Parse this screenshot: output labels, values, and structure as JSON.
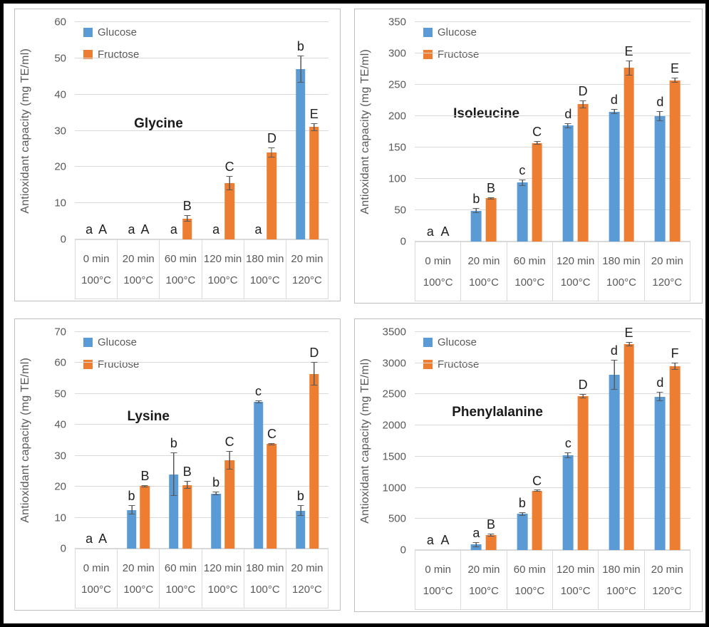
{
  "figure": {
    "background": "#ffffff",
    "border_color": "#000000"
  },
  "palette": {
    "glucose": "#5B9BD5",
    "fructose": "#ED7D31",
    "gridline": "#D9D9D9",
    "axis_text": "#595959",
    "letter_text": "#1f1f1f",
    "error_bar": "#595959",
    "panel_border": "#BFBFBF"
  },
  "legend": {
    "position": "top-left",
    "items": [
      {
        "label": "Glucose",
        "color": "#5B9BD5"
      },
      {
        "label": "Fructose",
        "color": "#ED7D31"
      }
    ]
  },
  "chart_data": [
    {
      "type": "bar",
      "title": "Glycine",
      "ylabel": "Antioxidant capacity (mg TE/ml)",
      "ylim": [
        0,
        60
      ],
      "yticks": [
        0,
        10,
        20,
        30,
        40,
        50,
        60
      ],
      "grid": true,
      "categories_line1": [
        "0 min",
        "20 min",
        "60 min",
        "120 min",
        "180 min",
        "20 min"
      ],
      "categories_line2": [
        "100°C",
        "100°C",
        "100°C",
        "100°C",
        "100°C",
        "120°C"
      ],
      "series": [
        {
          "name": "Glucose",
          "color": "#5B9BD5",
          "values": [
            0,
            0,
            0,
            0,
            0,
            47
          ],
          "errors": [
            0,
            0,
            0,
            0,
            0,
            3.7
          ],
          "letters": [
            "a",
            "a",
            "a",
            "a",
            "a",
            "b"
          ]
        },
        {
          "name": "Fructose",
          "color": "#ED7D31",
          "values": [
            0,
            0,
            5.8,
            15.5,
            24,
            31
          ],
          "errors": [
            0,
            0,
            0.8,
            2,
            1.3,
            1
          ],
          "letters": [
            "A",
            "A",
            "B",
            "C",
            "D",
            "E"
          ]
        }
      ],
      "title_pos": {
        "x": 33,
        "y": 47
      }
    },
    {
      "type": "bar",
      "title": "Isoleucine",
      "ylabel": "Antioxidant capacity (mg TE/ml)",
      "ylim": [
        0,
        350
      ],
      "yticks": [
        0,
        50,
        100,
        150,
        200,
        250,
        300,
        350
      ],
      "grid": true,
      "categories_line1": [
        "0 min",
        "20 min",
        "60 min",
        "120 min",
        "180 min",
        "20 min"
      ],
      "categories_line2": [
        "100°C",
        "100°C",
        "100°C",
        "100°C",
        "100°C",
        "120°C"
      ],
      "series": [
        {
          "name": "Glucose",
          "color": "#5B9BD5",
          "values": [
            0,
            49,
            94,
            185,
            207,
            200
          ],
          "errors": [
            0,
            4,
            5,
            4,
            4,
            8
          ],
          "letters": [
            "a",
            "b",
            "c",
            "d",
            "d",
            "d"
          ]
        },
        {
          "name": "Fructose",
          "color": "#ED7D31",
          "values": [
            0,
            69,
            157,
            219,
            277,
            257
          ],
          "errors": [
            0,
            1.5,
            3,
            6,
            12,
            4
          ],
          "letters": [
            "A",
            "B",
            "C",
            "D",
            "E",
            "E"
          ]
        }
      ],
      "title_pos": {
        "x": 26,
        "y": 42
      }
    },
    {
      "type": "bar",
      "title": "Lysine",
      "ylabel": "Antioxidant capacity (mg TE/ml)",
      "ylim": [
        0,
        70
      ],
      "yticks": [
        0,
        10,
        20,
        30,
        40,
        50,
        60,
        70
      ],
      "grid": true,
      "categories_line1": [
        "0 min",
        "20 min",
        "60 min",
        "120 min",
        "180 min",
        "20 min"
      ],
      "categories_line2": [
        "100°C",
        "100°C",
        "100°C",
        "100°C",
        "100°C",
        "120°C"
      ],
      "series": [
        {
          "name": "Glucose",
          "color": "#5B9BD5",
          "values": [
            0,
            12.5,
            24,
            17.8,
            47.5,
            12.3
          ],
          "errors": [
            0,
            1.5,
            7,
            0.6,
            0.5,
            1.8
          ],
          "letters": [
            "a",
            "b",
            "b",
            "b",
            "c",
            "b"
          ]
        },
        {
          "name": "Fructose",
          "color": "#ED7D31",
          "values": [
            0,
            20.2,
            20.6,
            28.5,
            33.8,
            56.5
          ],
          "errors": [
            0,
            0.3,
            1.2,
            3,
            0.3,
            3.8
          ],
          "letters": [
            "A",
            "B",
            "B",
            "C",
            "C",
            "D"
          ]
        }
      ],
      "title_pos": {
        "x": 29,
        "y": 39
      }
    },
    {
      "type": "bar",
      "title": "Phenylalanine",
      "ylabel": "Antioxidant capacity (mg TE/ml)",
      "ylim": [
        0,
        3500
      ],
      "yticks": [
        0,
        500,
        1000,
        1500,
        2000,
        2500,
        3000,
        3500
      ],
      "grid": true,
      "categories_line1": [
        "0 min",
        "20 min",
        "60 min",
        "120 min",
        "180 min",
        "20 min"
      ],
      "categories_line2": [
        "100°C",
        "100°C",
        "100°C",
        "100°C",
        "100°C",
        "120°C"
      ],
      "series": [
        {
          "name": "Glucose",
          "color": "#5B9BD5",
          "values": [
            0,
            90,
            580,
            1525,
            2810,
            2465
          ],
          "errors": [
            0,
            40,
            30,
            45,
            240,
            80
          ],
          "letters": [
            "a",
            "a",
            "b",
            "c",
            "d",
            "d"
          ]
        },
        {
          "name": "Fructose",
          "color": "#ED7D31",
          "values": [
            0,
            240,
            950,
            2475,
            3305,
            2950
          ],
          "errors": [
            0,
            20,
            15,
            35,
            30,
            60
          ],
          "letters": [
            "A",
            "B",
            "C",
            "D",
            "E",
            "F"
          ]
        }
      ],
      "title_pos": {
        "x": 30,
        "y": 37
      }
    }
  ]
}
